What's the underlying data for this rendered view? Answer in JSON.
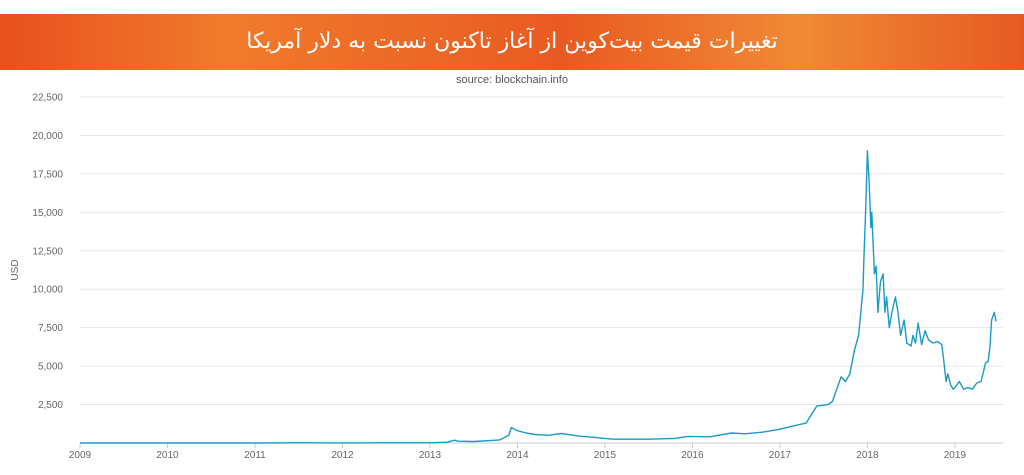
{
  "header": {
    "title": "تغییرات قیمت بیت‌کوین از آغاز تاکنون نسبت به دلار آمریکا",
    "source": "source: blockchain.info"
  },
  "colors": {
    "line": "#1a9bc7",
    "grid": "#e6e6e6",
    "axis": "#cccccc",
    "banner": "#ec6428"
  },
  "chart_data": {
    "type": "line",
    "title": "تغییرات قیمت بیت‌کوین از آغاز تاکنون نسبت به دلار آمریکا",
    "xlabel": "",
    "ylabel": "USD",
    "ylim": [
      0,
      22500
    ],
    "xlim": [
      2009.0,
      2019.55
    ],
    "grid": true,
    "legend": "none",
    "yticks": [
      2500,
      5000,
      7500,
      10000,
      12500,
      15000,
      17500,
      20000,
      22500
    ],
    "ytick_labels": [
      "2,500",
      "5,000",
      "7,500",
      "10,000",
      "12,500",
      "15,000",
      "17,500",
      "20,000",
      "22,500"
    ],
    "xticks": [
      2009,
      2010,
      2011,
      2012,
      2013,
      2014,
      2015,
      2016,
      2017,
      2018,
      2019
    ],
    "xtick_labels": [
      "2009",
      "2010",
      "2011",
      "2012",
      "2013",
      "2014",
      "2015",
      "2016",
      "2017",
      "2018",
      "2019"
    ],
    "series": [
      {
        "x": [
          2009.0,
          2010.5,
          2011.0,
          2011.45,
          2011.6,
          2012.0,
          2012.6,
          2013.0,
          2013.2,
          2013.28,
          2013.32,
          2013.5,
          2013.8,
          2013.9,
          2013.93,
          2014.0,
          2014.1,
          2014.2,
          2014.35,
          2014.5,
          2014.7,
          2014.9,
          2015.0,
          2015.1,
          2015.5,
          2015.8,
          2015.95,
          2016.2,
          2016.45,
          2016.6,
          2016.8,
          2017.0,
          2017.15,
          2017.3,
          2017.42,
          2017.55,
          2017.6,
          2017.7,
          2017.75,
          2017.8,
          2017.85,
          2017.9,
          2017.95,
          2017.96,
          2017.98,
          2018.0,
          2018.02,
          2018.04,
          2018.05,
          2018.08,
          2018.1,
          2018.12,
          2018.15,
          2018.18,
          2018.2,
          2018.22,
          2018.25,
          2018.28,
          2018.32,
          2018.35,
          2018.38,
          2018.42,
          2018.45,
          2018.5,
          2018.52,
          2018.55,
          2018.58,
          2018.62,
          2018.66,
          2018.7,
          2018.75,
          2018.8,
          2018.85,
          2018.87,
          2018.9,
          2018.92,
          2018.95,
          2018.98,
          2019.0,
          2019.05,
          2019.1,
          2019.15,
          2019.2,
          2019.25,
          2019.3,
          2019.35,
          2019.38,
          2019.4,
          2019.42,
          2019.45,
          2019.47
        ],
        "values": [
          0,
          0,
          0.3,
          15,
          10,
          5,
          10,
          13,
          50,
          180,
          120,
          100,
          200,
          500,
          1000,
          800,
          650,
          550,
          500,
          620,
          450,
          350,
          300,
          250,
          250,
          300,
          430,
          400,
          650,
          600,
          700,
          900,
          1100,
          1300,
          2400,
          2500,
          2700,
          4300,
          4000,
          4500,
          6000,
          7000,
          10000,
          12000,
          15000,
          19000,
          17000,
          14000,
          15000,
          11000,
          11500,
          8500,
          10500,
          11000,
          8500,
          9500,
          7500,
          8500,
          9500,
          8500,
          7000,
          8000,
          6500,
          6300,
          7000,
          6500,
          7800,
          6400,
          7300,
          6700,
          6500,
          6600,
          6400,
          5500,
          4000,
          4500,
          3800,
          3500,
          3600,
          4000,
          3500,
          3600,
          3500,
          3900,
          4000,
          5200,
          5300,
          6200,
          8000,
          8500,
          7900
        ]
      }
    ]
  }
}
